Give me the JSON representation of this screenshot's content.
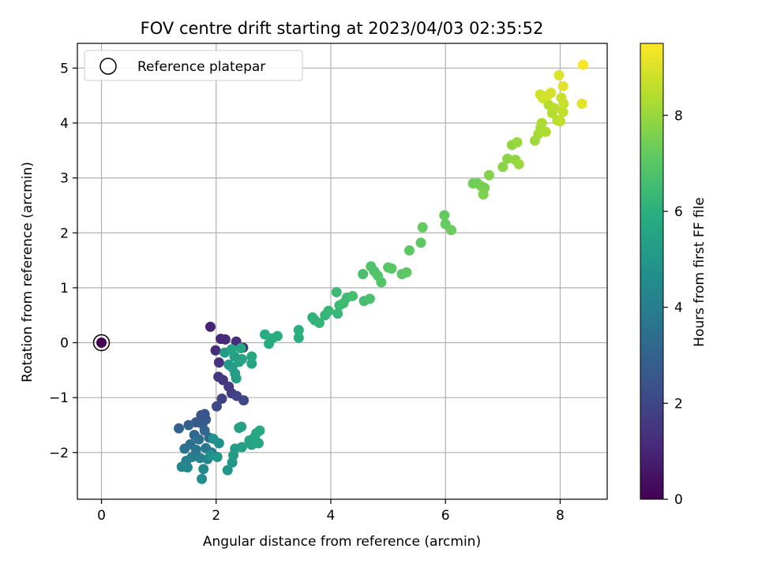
{
  "chart_data": {
    "type": "scatter",
    "title": "FOV centre drift starting at 2023/04/03 02:35:52",
    "xlabel": "Angular distance from reference (arcmin)",
    "ylabel": "Rotation from reference (arcmin)",
    "xlim": [
      -0.42,
      8.82
    ],
    "ylim": [
      -2.85,
      5.45
    ],
    "xticks": [
      0,
      2,
      4,
      6,
      8
    ],
    "yticks": [
      -2,
      -1,
      0,
      1,
      2,
      3,
      4,
      5
    ],
    "xtick_labels": [
      "0",
      "2",
      "4",
      "6",
      "8"
    ],
    "ytick_labels": [
      "−2",
      "−1",
      "0",
      "1",
      "2",
      "3",
      "4",
      "5"
    ],
    "grid": true,
    "legend": {
      "placement": "top-left",
      "entries": [
        "Reference platepar"
      ]
    },
    "reference_point": {
      "x": 0,
      "y": 0,
      "hours": 0
    },
    "colorbar": {
      "label": "Hours from first FF file",
      "range": [
        0,
        9.5
      ],
      "ticks": [
        0,
        2,
        4,
        6,
        8
      ],
      "tick_labels": [
        "0",
        "2",
        "4",
        "6",
        "8"
      ],
      "colormap": "viridis"
    },
    "points": [
      {
        "x": 1.9,
        "y": 0.29,
        "h": 1.0
      },
      {
        "x": 2.08,
        "y": 0.07,
        "h": 1.1
      },
      {
        "x": 2.16,
        "y": 0.06,
        "h": 1.1
      },
      {
        "x": 2.35,
        "y": 0.02,
        "h": 1.2
      },
      {
        "x": 1.99,
        "y": -0.14,
        "h": 1.2
      },
      {
        "x": 2.47,
        "y": -0.09,
        "h": 1.3
      },
      {
        "x": 2.05,
        "y": -0.36,
        "h": 1.3
      },
      {
        "x": 2.04,
        "y": -0.62,
        "h": 1.4
      },
      {
        "x": 2.12,
        "y": -0.68,
        "h": 1.5
      },
      {
        "x": 2.22,
        "y": -0.8,
        "h": 1.6
      },
      {
        "x": 2.27,
        "y": -0.92,
        "h": 1.7
      },
      {
        "x": 2.1,
        "y": -1.02,
        "h": 1.8
      },
      {
        "x": 2.36,
        "y": -0.97,
        "h": 1.9
      },
      {
        "x": 2.48,
        "y": -1.05,
        "h": 2.0
      },
      {
        "x": 2.01,
        "y": -1.16,
        "h": 2.1
      },
      {
        "x": 1.8,
        "y": -1.3,
        "h": 2.4
      },
      {
        "x": 1.74,
        "y": -1.32,
        "h": 2.5
      },
      {
        "x": 1.82,
        "y": -1.4,
        "h": 2.6
      },
      {
        "x": 1.65,
        "y": -1.45,
        "h": 2.7
      },
      {
        "x": 1.76,
        "y": -1.48,
        "h": 2.8
      },
      {
        "x": 1.52,
        "y": -1.5,
        "h": 2.9
      },
      {
        "x": 1.35,
        "y": -1.56,
        "h": 3.0
      },
      {
        "x": 1.8,
        "y": -1.6,
        "h": 3.1
      },
      {
        "x": 1.62,
        "y": -1.68,
        "h": 3.2
      },
      {
        "x": 1.88,
        "y": -1.73,
        "h": 3.3
      },
      {
        "x": 1.7,
        "y": -1.76,
        "h": 3.4
      },
      {
        "x": 1.55,
        "y": -1.85,
        "h": 3.5
      },
      {
        "x": 1.45,
        "y": -1.93,
        "h": 3.6
      },
      {
        "x": 1.65,
        "y": -1.95,
        "h": 3.7
      },
      {
        "x": 1.82,
        "y": -1.92,
        "h": 3.8
      },
      {
        "x": 1.92,
        "y": -2.0,
        "h": 3.9
      },
      {
        "x": 1.58,
        "y": -2.08,
        "h": 4.0
      },
      {
        "x": 1.72,
        "y": -2.1,
        "h": 4.1
      },
      {
        "x": 1.48,
        "y": -2.15,
        "h": 4.2
      },
      {
        "x": 1.85,
        "y": -2.12,
        "h": 4.3
      },
      {
        "x": 1.4,
        "y": -2.26,
        "h": 4.3
      },
      {
        "x": 1.5,
        "y": -2.27,
        "h": 4.4
      },
      {
        "x": 1.78,
        "y": -2.3,
        "h": 4.5
      },
      {
        "x": 1.75,
        "y": -2.48,
        "h": 4.6
      },
      {
        "x": 1.95,
        "y": -1.75,
        "h": 4.7
      },
      {
        "x": 2.05,
        "y": -1.83,
        "h": 4.8
      },
      {
        "x": 1.9,
        "y": -2.05,
        "h": 4.8
      },
      {
        "x": 2.02,
        "y": -2.08,
        "h": 4.9
      },
      {
        "x": 2.2,
        "y": -2.32,
        "h": 5.0
      },
      {
        "x": 2.28,
        "y": -2.18,
        "h": 5.0
      },
      {
        "x": 2.3,
        "y": -2.05,
        "h": 5.1
      },
      {
        "x": 2.33,
        "y": -1.93,
        "h": 5.2
      },
      {
        "x": 2.45,
        "y": -1.9,
        "h": 5.3
      },
      {
        "x": 2.4,
        "y": -1.55,
        "h": 5.3
      },
      {
        "x": 2.44,
        "y": -1.53,
        "h": 5.4
      },
      {
        "x": 2.58,
        "y": -1.78,
        "h": 5.5
      },
      {
        "x": 2.62,
        "y": -1.86,
        "h": 5.5
      },
      {
        "x": 2.67,
        "y": -1.72,
        "h": 5.6
      },
      {
        "x": 2.74,
        "y": -1.83,
        "h": 5.6
      },
      {
        "x": 2.76,
        "y": -1.6,
        "h": 5.7
      },
      {
        "x": 2.7,
        "y": -1.65,
        "h": 5.7
      },
      {
        "x": 2.15,
        "y": -0.18,
        "h": 5.1
      },
      {
        "x": 2.22,
        "y": -0.4,
        "h": 5.1
      },
      {
        "x": 2.28,
        "y": -0.45,
        "h": 5.2
      },
      {
        "x": 2.33,
        "y": -0.56,
        "h": 5.3
      },
      {
        "x": 2.35,
        "y": -0.65,
        "h": 5.3
      },
      {
        "x": 2.4,
        "y": -0.35,
        "h": 5.4
      },
      {
        "x": 2.32,
        "y": -0.25,
        "h": 5.4
      },
      {
        "x": 2.45,
        "y": -0.3,
        "h": 5.5
      },
      {
        "x": 2.27,
        "y": -0.12,
        "h": 5.5
      },
      {
        "x": 2.43,
        "y": -0.1,
        "h": 5.6
      },
      {
        "x": 2.62,
        "y": -0.38,
        "h": 5.6
      },
      {
        "x": 2.62,
        "y": -0.25,
        "h": 5.7
      },
      {
        "x": 2.85,
        "y": 0.15,
        "h": 5.8
      },
      {
        "x": 2.92,
        "y": -0.02,
        "h": 5.8
      },
      {
        "x": 2.98,
        "y": 0.08,
        "h": 5.9
      },
      {
        "x": 3.07,
        "y": 0.12,
        "h": 5.9
      },
      {
        "x": 3.44,
        "y": 0.23,
        "h": 6.0
      },
      {
        "x": 3.44,
        "y": 0.09,
        "h": 6.0
      },
      {
        "x": 3.68,
        "y": 0.46,
        "h": 6.1
      },
      {
        "x": 3.72,
        "y": 0.41,
        "h": 6.1
      },
      {
        "x": 3.8,
        "y": 0.36,
        "h": 6.2
      },
      {
        "x": 3.9,
        "y": 0.5,
        "h": 6.2
      },
      {
        "x": 3.96,
        "y": 0.58,
        "h": 6.3
      },
      {
        "x": 4.12,
        "y": 0.53,
        "h": 6.3
      },
      {
        "x": 4.1,
        "y": 0.92,
        "h": 6.4
      },
      {
        "x": 4.15,
        "y": 0.68,
        "h": 6.4
      },
      {
        "x": 4.22,
        "y": 0.72,
        "h": 6.5
      },
      {
        "x": 4.28,
        "y": 0.82,
        "h": 6.5
      },
      {
        "x": 4.38,
        "y": 0.85,
        "h": 6.6
      },
      {
        "x": 4.58,
        "y": 0.76,
        "h": 6.6
      },
      {
        "x": 4.68,
        "y": 0.8,
        "h": 6.7
      },
      {
        "x": 4.56,
        "y": 1.25,
        "h": 6.7
      },
      {
        "x": 4.7,
        "y": 1.39,
        "h": 6.8
      },
      {
        "x": 4.76,
        "y": 1.3,
        "h": 6.8
      },
      {
        "x": 4.82,
        "y": 1.22,
        "h": 6.9
      },
      {
        "x": 4.88,
        "y": 1.1,
        "h": 6.9
      },
      {
        "x": 5.0,
        "y": 1.37,
        "h": 7.0
      },
      {
        "x": 5.06,
        "y": 1.35,
        "h": 7.0
      },
      {
        "x": 5.24,
        "y": 1.25,
        "h": 7.0
      },
      {
        "x": 5.32,
        "y": 1.28,
        "h": 7.1
      },
      {
        "x": 5.37,
        "y": 1.68,
        "h": 7.1
      },
      {
        "x": 5.57,
        "y": 1.82,
        "h": 7.1
      },
      {
        "x": 5.6,
        "y": 2.1,
        "h": 7.2
      },
      {
        "x": 5.98,
        "y": 2.32,
        "h": 7.2
      },
      {
        "x": 6.0,
        "y": 2.16,
        "h": 7.2
      },
      {
        "x": 6.1,
        "y": 2.05,
        "h": 7.3
      },
      {
        "x": 6.48,
        "y": 2.9,
        "h": 7.4
      },
      {
        "x": 6.56,
        "y": 2.9,
        "h": 7.4
      },
      {
        "x": 6.62,
        "y": 2.85,
        "h": 7.5
      },
      {
        "x": 6.68,
        "y": 2.82,
        "h": 7.5
      },
      {
        "x": 6.66,
        "y": 2.7,
        "h": 7.6
      },
      {
        "x": 6.76,
        "y": 3.05,
        "h": 7.7
      },
      {
        "x": 7.0,
        "y": 3.2,
        "h": 7.8
      },
      {
        "x": 7.08,
        "y": 3.35,
        "h": 7.8
      },
      {
        "x": 7.16,
        "y": 3.6,
        "h": 7.9
      },
      {
        "x": 7.22,
        "y": 3.33,
        "h": 7.9
      },
      {
        "x": 7.25,
        "y": 3.65,
        "h": 8.0
      },
      {
        "x": 7.28,
        "y": 3.25,
        "h": 8.0
      },
      {
        "x": 7.56,
        "y": 3.68,
        "h": 8.1
      },
      {
        "x": 7.62,
        "y": 3.8,
        "h": 8.2
      },
      {
        "x": 7.66,
        "y": 3.92,
        "h": 8.2
      },
      {
        "x": 7.68,
        "y": 4.0,
        "h": 8.3
      },
      {
        "x": 7.75,
        "y": 3.84,
        "h": 8.3
      },
      {
        "x": 7.8,
        "y": 4.33,
        "h": 8.4
      },
      {
        "x": 7.86,
        "y": 4.18,
        "h": 8.4
      },
      {
        "x": 7.9,
        "y": 4.27,
        "h": 8.5
      },
      {
        "x": 7.95,
        "y": 4.05,
        "h": 8.5
      },
      {
        "x": 8.0,
        "y": 4.03,
        "h": 8.6
      },
      {
        "x": 8.05,
        "y": 4.2,
        "h": 8.6
      },
      {
        "x": 8.02,
        "y": 4.46,
        "h": 8.7
      },
      {
        "x": 8.06,
        "y": 4.35,
        "h": 8.7
      },
      {
        "x": 7.65,
        "y": 4.52,
        "h": 8.8
      },
      {
        "x": 7.7,
        "y": 4.45,
        "h": 8.8
      },
      {
        "x": 7.78,
        "y": 4.5,
        "h": 8.9
      },
      {
        "x": 7.84,
        "y": 4.55,
        "h": 8.9
      },
      {
        "x": 7.98,
        "y": 4.87,
        "h": 9.0
      },
      {
        "x": 8.05,
        "y": 4.67,
        "h": 9.1
      },
      {
        "x": 8.38,
        "y": 4.35,
        "h": 9.1
      },
      {
        "x": 8.4,
        "y": 5.06,
        "h": 9.4
      }
    ]
  }
}
